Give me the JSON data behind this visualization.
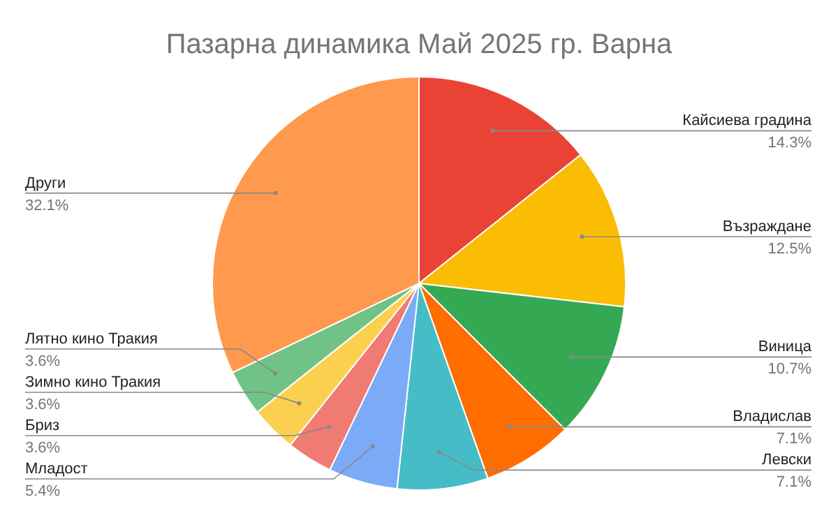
{
  "chart_data": {
    "type": "pie",
    "title": "Пазарна динамика Май 2025 гр. Варна",
    "categories": [
      "Кайсиева градина",
      "Възраждане",
      "Виница",
      "Владислав",
      "Левски",
      "Младост",
      "Бриз",
      "Зимно кино Тракия",
      "Лятно кино Тракия",
      "Други"
    ],
    "values": [
      14.3,
      12.5,
      10.7,
      7.1,
      7.1,
      5.4,
      3.6,
      3.6,
      3.6,
      32.1
    ],
    "colors": [
      "#ea4335",
      "#fbbc04",
      "#34a853",
      "#ff6d01",
      "#46bdc6",
      "#7baaf7",
      "#f07b72",
      "#fcd04f",
      "#71c287",
      "#ff994d"
    ],
    "value_labels": [
      "14.3%",
      "12.5%",
      "10.7%",
      "7.1%",
      "7.1%",
      "5.4%",
      "3.6%",
      "3.6%",
      "3.6%",
      "32.1%"
    ]
  }
}
